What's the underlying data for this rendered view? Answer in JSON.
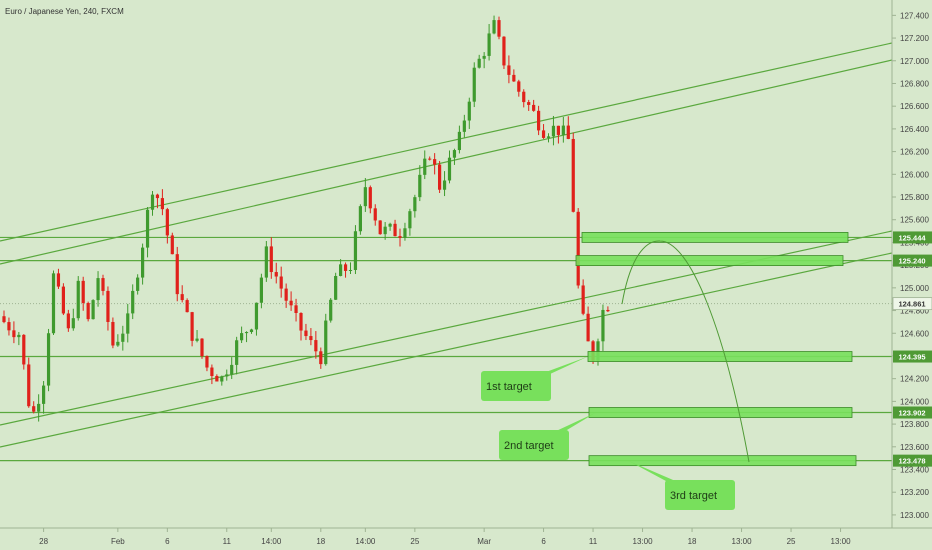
{
  "chart_data": {
    "type": "candlestick",
    "title": "Euro / Japanese Yen, 240, FXCM",
    "ylim": [
      122.92,
      127.5
    ],
    "y_ticks": [
      "127.400",
      "127.200",
      "127.000",
      "126.800",
      "126.600",
      "126.400",
      "126.200",
      "126.000",
      "125.800",
      "125.600",
      "125.400",
      "125.200",
      "125.000",
      "124.800",
      "124.600",
      "124.400",
      "124.200",
      "124.000",
      "123.800",
      "123.600",
      "123.400",
      "123.200",
      "123.000"
    ],
    "x_ticks": [
      "28",
      "Feb",
      "6",
      "11",
      "14:00",
      "18",
      "14:00",
      "25",
      "Mar",
      "6",
      "11",
      "13:00",
      "18",
      "13:00",
      "25",
      "13:00"
    ],
    "x_tick_index": [
      8,
      23,
      33,
      45,
      54,
      64,
      73,
      83,
      97,
      109,
      119,
      129,
      139,
      149,
      159,
      169
    ],
    "bar_count": 170,
    "last_price": 124.861,
    "price_levels": [
      {
        "value": 125.444,
        "label": "125.444"
      },
      {
        "value": 125.24,
        "label": "125.240"
      },
      {
        "value": 124.395,
        "label": "124.395"
      },
      {
        "value": 123.902,
        "label": "123.902"
      },
      {
        "value": 123.478,
        "label": "123.478"
      }
    ],
    "current_label": "124.861",
    "targets": [
      {
        "label": "1st target",
        "level": 124.395
      },
      {
        "label": "2nd target",
        "level": 123.902
      },
      {
        "label": "3rd target",
        "level": 123.478
      }
    ],
    "close_anchors": [
      [
        0,
        124.7
      ],
      [
        3,
        124.6
      ],
      [
        5,
        124.0
      ],
      [
        6,
        123.9
      ],
      [
        8,
        124.2
      ],
      [
        10,
        125.1
      ],
      [
        13,
        124.6
      ],
      [
        15,
        125.0
      ],
      [
        17,
        124.7
      ],
      [
        19,
        125.1
      ],
      [
        22,
        124.5
      ],
      [
        25,
        124.7
      ],
      [
        28,
        125.4
      ],
      [
        30,
        125.9
      ],
      [
        32,
        125.7
      ],
      [
        35,
        125.0
      ],
      [
        38,
        124.6
      ],
      [
        41,
        124.3
      ],
      [
        44,
        124.2
      ],
      [
        47,
        124.5
      ],
      [
        50,
        124.7
      ],
      [
        53,
        125.3
      ],
      [
        56,
        125.0
      ],
      [
        59,
        124.7
      ],
      [
        62,
        124.5
      ],
      [
        64,
        124.4
      ],
      [
        67,
        125.1
      ],
      [
        70,
        125.2
      ],
      [
        73,
        125.9
      ],
      [
        76,
        125.5
      ],
      [
        80,
        125.5
      ],
      [
        83,
        125.8
      ],
      [
        86,
        126.2
      ],
      [
        88,
        125.9
      ],
      [
        92,
        126.3
      ],
      [
        95,
        126.9
      ],
      [
        97,
        127.1
      ],
      [
        99,
        127.3
      ],
      [
        101,
        127.0
      ],
      [
        103,
        126.8
      ],
      [
        106,
        126.6
      ],
      [
        109,
        126.4
      ],
      [
        112,
        126.4
      ],
      [
        114,
        126.3
      ],
      [
        115,
        125.7
      ],
      [
        116,
        125.0
      ],
      [
        117,
        124.7
      ],
      [
        118,
        124.5
      ],
      [
        119,
        124.4
      ],
      [
        120,
        124.6
      ],
      [
        121,
        124.8
      ],
      [
        122,
        124.86
      ]
    ],
    "candle_count": 123
  }
}
